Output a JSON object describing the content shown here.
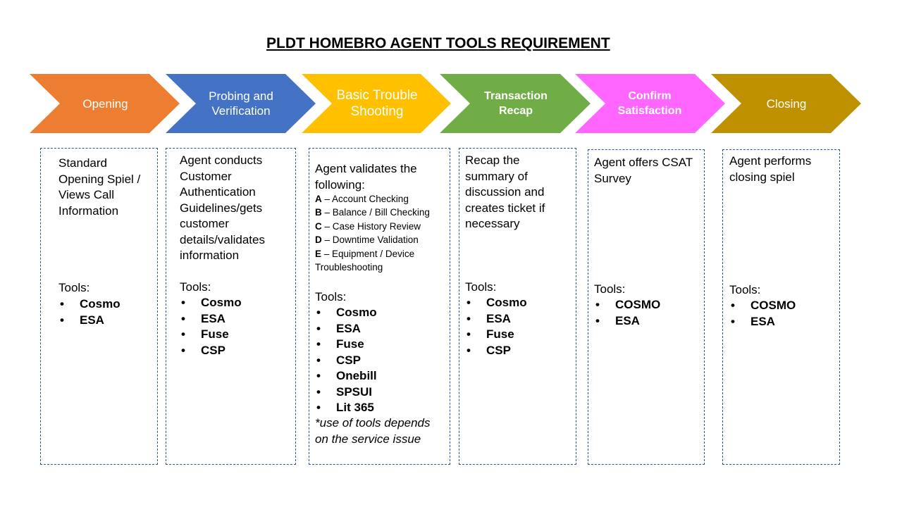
{
  "title": "PLDT HOMEBRO AGENT TOOLS REQUIREMENT",
  "steps": [
    {
      "label": "Opening",
      "color": "#ed7d31",
      "description": "Standard Opening Spiel / Views Call Information",
      "tools_label": "Tools:",
      "tools": [
        "Cosmo",
        "ESA"
      ]
    },
    {
      "label": "Probing and Verification",
      "color": "#4472c4",
      "description": "Agent conducts Customer Authentication Guidelines/gets customer details/validates information",
      "tools_label": "Tools:",
      "tools": [
        "Cosmo",
        "ESA",
        "Fuse",
        "CSP"
      ]
    },
    {
      "label": "Basic Trouble Shooting",
      "color": "#ffc000",
      "description": "Agent validates the following:",
      "checks": [
        {
          "letter": "A",
          "text": " – Account  Checking"
        },
        {
          "letter": "B",
          "text": " – Balance / Bill Checking"
        },
        {
          "letter": "C",
          "text": " – Case History Review"
        },
        {
          "letter": "D",
          "text": " – Downtime  Validation"
        },
        {
          "letter": "E",
          "text": " – Equipment  / Device"
        }
      ],
      "checks_continuation": "Troubleshooting",
      "tools_label": "Tools:",
      "tools": [
        "Cosmo",
        "ESA",
        "Fuse",
        "CSP",
        "Onebill",
        "SPSUI",
        "Lit 365"
      ],
      "note": "*use of tools depends on the service issue"
    },
    {
      "label": "Transaction Recap",
      "color": "#70ad47",
      "description": "Recap the summary of discussion and creates ticket if necessary",
      "tools_label": "Tools:",
      "tools": [
        "Cosmo",
        "ESA",
        "Fuse",
        "CSP"
      ]
    },
    {
      "label": "Confirm Satisfaction",
      "color": "#ff66ff",
      "description": "Agent offers CSAT Survey",
      "tools_label": "Tools:",
      "tools": [
        "COSMO",
        "ESA"
      ]
    },
    {
      "label": "Closing",
      "color": "#bf9000",
      "description": "Agent performs closing spiel",
      "tools_label": "Tools:",
      "tools": [
        "COSMO",
        "ESA"
      ]
    }
  ],
  "bullet_glyph": "•"
}
